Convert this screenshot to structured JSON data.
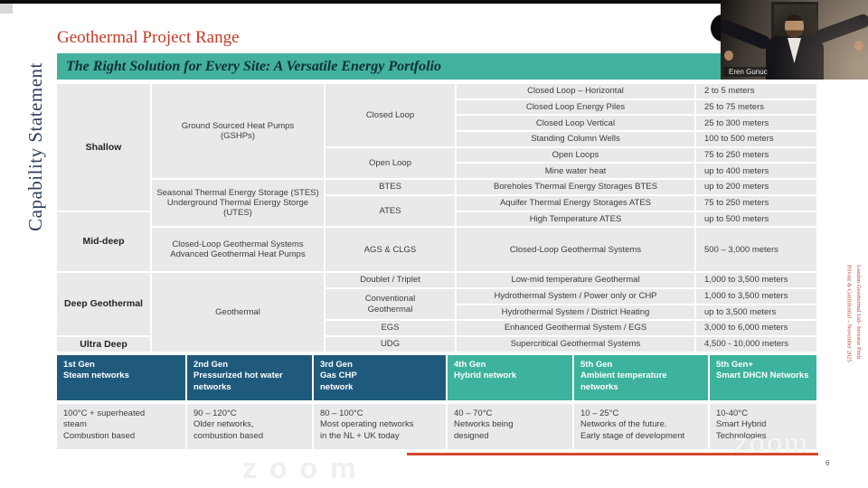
{
  "slide": {
    "sidebar_label": "Capability Statement",
    "title": "Geothermal Project Range",
    "banner": "The Right Solution for Every Site: A Versatile Energy Portfolio",
    "page_number": "6",
    "watermark": "zoom",
    "watermark_faint": "zoom",
    "footer_line1": "London Geothermal Ltd– Investor Pitch",
    "footer_line2": "Private & Confidential – November 2025"
  },
  "webcam": {
    "participant_name": "Eren Gunuc"
  },
  "colors": {
    "title_red": "#c33b26",
    "banner_teal": "#43b19d",
    "cell_gray": "#e9e8ea",
    "gen_blue": "#1f5a7d",
    "gen_teal": "#3db29d",
    "red_line": "#d5492e",
    "sidebar_navy": "#2e3e5a"
  },
  "range_table": {
    "cells": [
      {
        "c": 1,
        "r": 1,
        "rs": 8,
        "cls": "depth",
        "t": "Shallow"
      },
      {
        "c": 1,
        "r": 9,
        "rs": 2,
        "cls": "depth",
        "t": "Mid-deep"
      },
      {
        "c": 1,
        "r": 11,
        "rs": 4,
        "cls": "depth",
        "t": "Deep Geothermal"
      },
      {
        "c": 1,
        "r": 15,
        "rs": 1,
        "cls": "depth",
        "t": "Ultra Deep"
      },
      {
        "c": 2,
        "r": 1,
        "rs": 6,
        "t": "Ground Sourced Heat Pumps\n(GSHPs)"
      },
      {
        "c": 2,
        "r": 7,
        "rs": 3,
        "t": "Seasonal Thermal Energy Storage (STES)\nUnderground Thermal Energy Storge (UTES)"
      },
      {
        "c": 2,
        "r": 10,
        "rs": 1,
        "t": "Closed-Loop Geothermal Systems\nAdvanced Geothermal Heat Pumps"
      },
      {
        "c": 2,
        "r": 11,
        "rs": 5,
        "t": "Geothermal"
      },
      {
        "c": 3,
        "r": 1,
        "rs": 4,
        "t": "Closed Loop"
      },
      {
        "c": 3,
        "r": 5,
        "rs": 2,
        "t": "Open Loop"
      },
      {
        "c": 3,
        "r": 7,
        "rs": 1,
        "t": "BTES"
      },
      {
        "c": 3,
        "r": 8,
        "rs": 2,
        "t": "ATES"
      },
      {
        "c": 3,
        "r": 10,
        "rs": 1,
        "t": "AGS & CLGS"
      },
      {
        "c": 3,
        "r": 11,
        "rs": 1,
        "t": "Doublet / Triplet"
      },
      {
        "c": 3,
        "r": 12,
        "rs": 2,
        "t": "Conventional\nGeothermal"
      },
      {
        "c": 3,
        "r": 14,
        "rs": 1,
        "t": "EGS"
      },
      {
        "c": 3,
        "r": 15,
        "rs": 1,
        "t": "UDG"
      },
      {
        "c": 4,
        "r": 1,
        "rs": 1,
        "t": "Closed Loop – Horizontal"
      },
      {
        "c": 4,
        "r": 2,
        "rs": 1,
        "t": "Closed Loop Energy Piles"
      },
      {
        "c": 4,
        "r": 3,
        "rs": 1,
        "t": "Closed Loop Vertical"
      },
      {
        "c": 4,
        "r": 4,
        "rs": 1,
        "t": "Standing Column Wells"
      },
      {
        "c": 4,
        "r": 5,
        "rs": 1,
        "t": "Open Loops"
      },
      {
        "c": 4,
        "r": 6,
        "rs": 1,
        "t": "Mine water heat"
      },
      {
        "c": 4,
        "r": 7,
        "rs": 1,
        "t": "Boreholes Thermal Energy Storages BTES"
      },
      {
        "c": 4,
        "r": 8,
        "rs": 1,
        "t": "Aquifer Thermal Energy Storages ATES"
      },
      {
        "c": 4,
        "r": 9,
        "rs": 1,
        "t": "High Temperature ATES"
      },
      {
        "c": 4,
        "r": 10,
        "rs": 1,
        "t": "Closed-Loop Geothermal Systems"
      },
      {
        "c": 4,
        "r": 11,
        "rs": 1,
        "t": "Low-mid temperature Geothermal"
      },
      {
        "c": 4,
        "r": 12,
        "rs": 1,
        "t": "Hydrothermal System / Power only or CHP"
      },
      {
        "c": 4,
        "r": 13,
        "rs": 1,
        "t": "Hydrothermal System / District Heating"
      },
      {
        "c": 4,
        "r": 14,
        "rs": 1,
        "t": "Enhanced Geothermal System / EGS"
      },
      {
        "c": 4,
        "r": 15,
        "rs": 1,
        "t": "Supercritical Geothermal Systems"
      },
      {
        "c": 5,
        "r": 1,
        "rs": 1,
        "cls": "meters",
        "t": "2 to 5 meters"
      },
      {
        "c": 5,
        "r": 2,
        "rs": 1,
        "cls": "meters",
        "t": "25 to 75 meters"
      },
      {
        "c": 5,
        "r": 3,
        "rs": 1,
        "cls": "meters",
        "t": "25 to 300 meters"
      },
      {
        "c": 5,
        "r": 4,
        "rs": 1,
        "cls": "meters",
        "t": "100 to 500 meters"
      },
      {
        "c": 5,
        "r": 5,
        "rs": 1,
        "cls": "meters",
        "t": "75 to 250 meters"
      },
      {
        "c": 5,
        "r": 6,
        "rs": 1,
        "cls": "meters",
        "t": "up to 400 meters"
      },
      {
        "c": 5,
        "r": 7,
        "rs": 1,
        "cls": "meters",
        "t": "up to 200 meters"
      },
      {
        "c": 5,
        "r": 8,
        "rs": 1,
        "cls": "meters",
        "t": "75 to 250 meters"
      },
      {
        "c": 5,
        "r": 9,
        "rs": 1,
        "cls": "meters",
        "t": "up to 500 meters"
      },
      {
        "c": 5,
        "r": 10,
        "rs": 1,
        "cls": "meters",
        "t": "500 – 3,000 meters"
      },
      {
        "c": 5,
        "r": 11,
        "rs": 1,
        "cls": "meters",
        "t": "1,000 to 3,500 meters"
      },
      {
        "c": 5,
        "r": 12,
        "rs": 1,
        "cls": "meters",
        "t": "1,000 to  3,500 meters"
      },
      {
        "c": 5,
        "r": 13,
        "rs": 1,
        "cls": "meters",
        "t": "up to 3,500 meters"
      },
      {
        "c": 5,
        "r": 14,
        "rs": 1,
        "cls": "meters",
        "t": "3,000 to 6,000 meters"
      },
      {
        "c": 5,
        "r": 15,
        "rs": 1,
        "cls": "meters",
        "t": "4,500 - 10,000 meters"
      }
    ]
  },
  "generations": {
    "columns": [
      {
        "header": "1st Gen\nSteam networks",
        "color": "#1f5a7d",
        "body": "100°C + superheated\nsteam\nCombustion based"
      },
      {
        "header": "2nd Gen\nPressurized hot water\nnetworks",
        "color": "#1f5a7d",
        "body": "90 – 120°C\nOlder networks,\ncombustion based"
      },
      {
        "header": "3rd Gen\nGas CHP\nnetwork",
        "color": "#1f5a7d",
        "body": "80 – 100°C\nMost operating networks\nin the NL + UK today"
      },
      {
        "header": "4th Gen\nHybrid network",
        "color": "#3db29d",
        "body": "40 – 70°C\nNetworks being\ndesigned"
      },
      {
        "header": "5th Gen\nAmbient temperature\nnetworks",
        "color": "#3db29d",
        "body": "10 – 25°C\nNetworks of the future.\nEarly stage of development"
      },
      {
        "header": "5th Gen+\nSmart DHCN Networks",
        "color": "#3db29d",
        "body": "10-40°C\nSmart Hybrid\nTechnologies"
      }
    ]
  }
}
